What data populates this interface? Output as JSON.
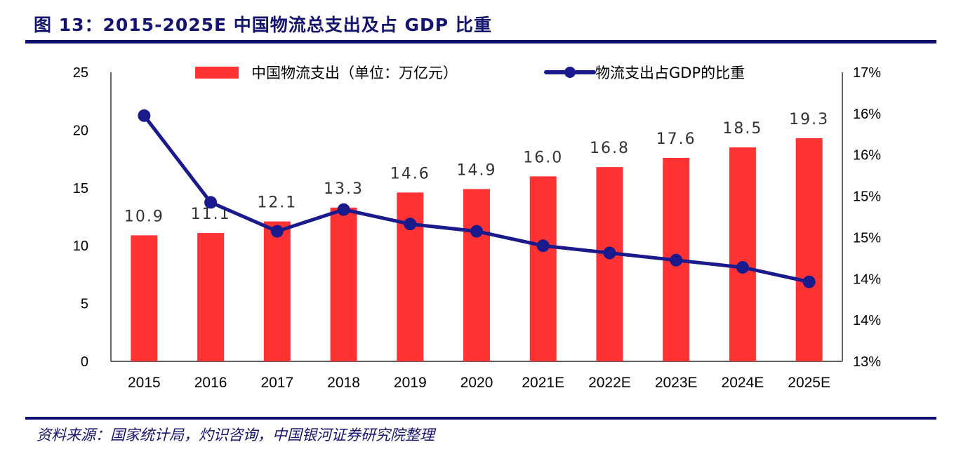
{
  "title": "图 13：2015-2025E 中国物流总支出及占 GDP 比重",
  "source": "资料来源：国家统计局，灼识咨询，中国银河证券研究院整理",
  "colors": {
    "bar": "#ff3333",
    "line": "#1a1a8c",
    "accent": "#0f0f6e"
  },
  "chart_data": {
    "type": "bar+line",
    "categories": [
      "2015",
      "2016",
      "2017",
      "2018",
      "2019",
      "2020",
      "2021E",
      "2022E",
      "2023E",
      "2024E",
      "2025E"
    ],
    "series": [
      {
        "name": "中国物流支出（单位：万亿元）",
        "type": "bar",
        "axis": "left",
        "values": [
          10.9,
          11.1,
          12.1,
          13.3,
          14.6,
          14.9,
          16.0,
          16.8,
          17.6,
          18.5,
          19.3
        ],
        "labels": [
          "10.9",
          "11.1",
          "12.1",
          "13.3",
          "14.6",
          "14.9",
          "16.0",
          "16.8",
          "17.6",
          "18.5",
          "19.3"
        ]
      },
      {
        "name": "物流支出占GDP的比重",
        "type": "line",
        "axis": "right",
        "values": [
          16.4,
          15.2,
          14.8,
          15.1,
          14.9,
          14.8,
          14.6,
          14.5,
          14.4,
          14.3,
          14.1
        ]
      }
    ],
    "left_axis": {
      "range": [
        0,
        25
      ],
      "ticks": [
        "0",
        "5",
        "10",
        "15",
        "20",
        "25"
      ]
    },
    "right_axis": {
      "range": [
        13,
        17
      ],
      "unit": "%",
      "ticks": [
        "13%",
        "14%",
        "14%",
        "15%",
        "15%",
        "16%",
        "16%",
        "17%"
      ]
    },
    "legend": "top",
    "grid": false
  }
}
